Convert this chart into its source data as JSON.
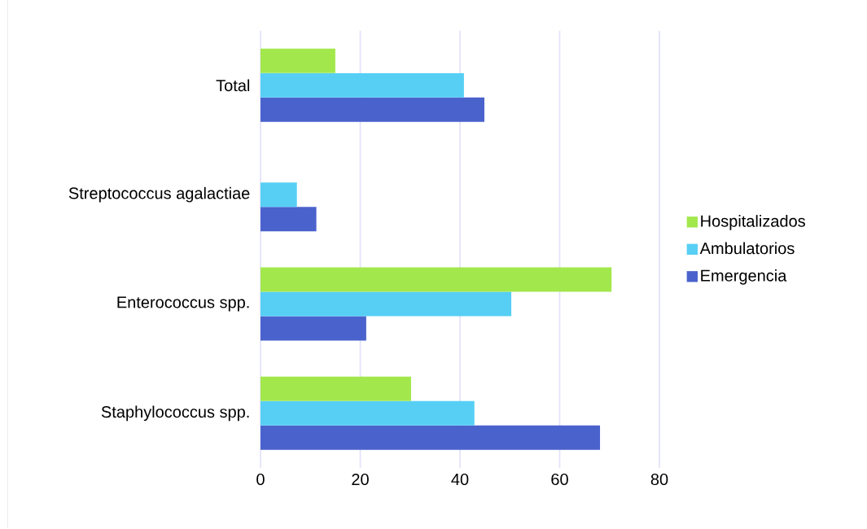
{
  "chart_data": {
    "type": "bar",
    "orientation": "horizontal",
    "categories": [
      "Total",
      "Streptococcus agalactiae",
      "Enterococcus spp.",
      "Staphylococcus spp."
    ],
    "series": [
      {
        "name": "Emergencia",
        "color": "#4a62cc",
        "values": [
          44.9,
          11.2,
          21.2,
          68.1
        ]
      },
      {
        "name": "Ambulatorios",
        "color": "#57cff5",
        "values": [
          40.8,
          7.3,
          50.3,
          42.9
        ]
      },
      {
        "name": "Hospitalizados",
        "color": "#a2e84c",
        "values": [
          15.0,
          null,
          70.4,
          30.2
        ]
      }
    ],
    "xlim": [
      0,
      80
    ],
    "xticks": [
      0,
      20,
      40,
      60,
      80
    ],
    "grid": "x",
    "legend": "right"
  }
}
